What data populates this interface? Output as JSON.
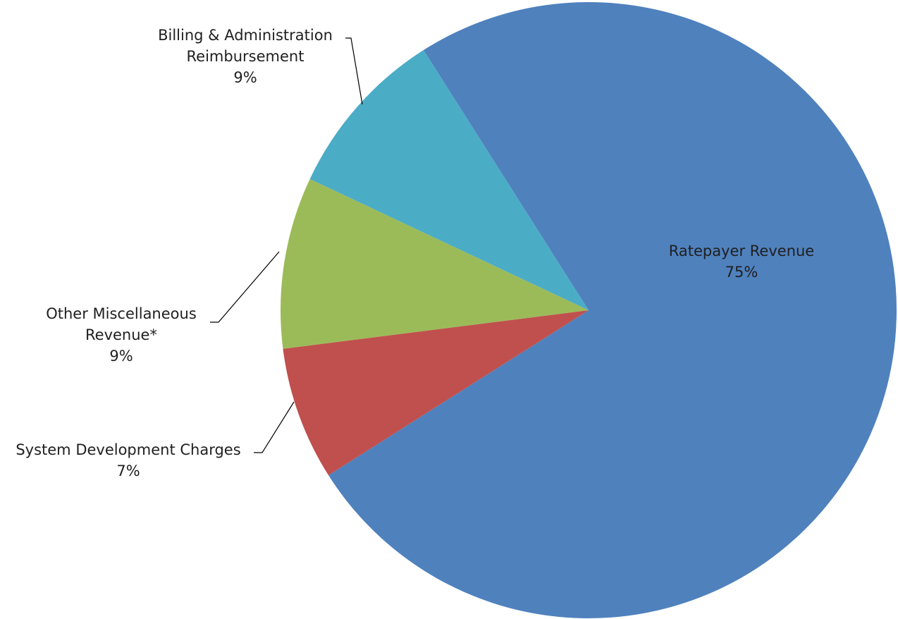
{
  "chart_data": {
    "type": "pie",
    "slices": [
      {
        "name": "Ratepayer Revenue",
        "value": 75,
        "pct_label": "75%",
        "color": "#4F81BD"
      },
      {
        "name": "System Development Charges",
        "value": 7,
        "pct_label": "7%",
        "color": "#C0504D"
      },
      {
        "name": "Other Miscellaneous Revenue*",
        "value": 9,
        "pct_label": "9%",
        "color": "#9BBB59"
      },
      {
        "name": "Billing & Administration Reimbursement",
        "value": 9,
        "pct_label": "9%",
        "color": "#4BACC6"
      }
    ],
    "labels": {
      "ratepayer": {
        "line1": "Ratepayer Revenue",
        "pct": "75%"
      },
      "sdc": {
        "line1": "System Development Charges",
        "pct": "7%"
      },
      "other": {
        "line1": "Other Miscellaneous",
        "line2": "Revenue*",
        "pct": "9%"
      },
      "billing": {
        "line1": "Billing & Administration",
        "line2": "Reimbursement",
        "pct": "9%"
      }
    },
    "legend": "none"
  }
}
